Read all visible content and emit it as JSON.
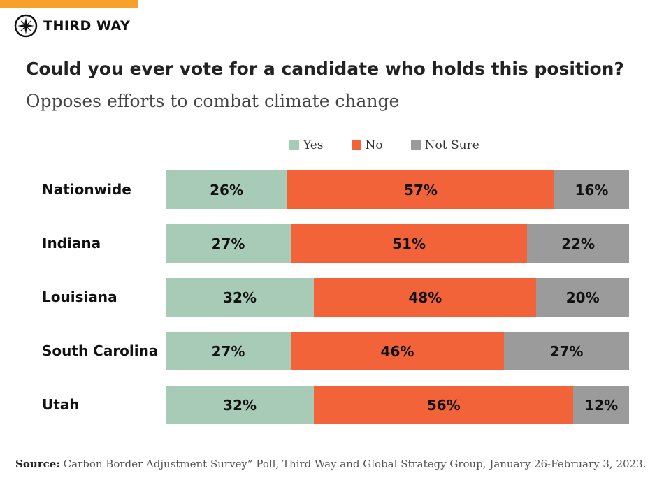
{
  "brand": {
    "name": "THIRD WAY",
    "accent": "#f7a12b"
  },
  "chart_data": {
    "type": "bar",
    "orientation": "horizontal-stacked-100",
    "title": "Could you ever vote for a candidate who holds this position?",
    "subtitle": "Opposes efforts to combat climate change",
    "legend_position": "top",
    "categories": [
      "Nationwide",
      "Indiana",
      "Louisiana",
      "South Carolina",
      "Utah"
    ],
    "series": [
      {
        "name": "Yes",
        "color": "#a8cbb7",
        "values": [
          26,
          27,
          32,
          27,
          32
        ]
      },
      {
        "name": "No",
        "color": "#f2633a",
        "values": [
          57,
          51,
          48,
          46,
          56
        ]
      },
      {
        "name": "Not Sure",
        "color": "#9b9b9b",
        "values": [
          16,
          22,
          20,
          27,
          12
        ]
      }
    ],
    "grid": false
  },
  "source": {
    "label": "Source:",
    "text": "Carbon Border Adjustment Survey” Poll, Third Way and Global Strategy Group, January 26-February 3, 2023."
  }
}
